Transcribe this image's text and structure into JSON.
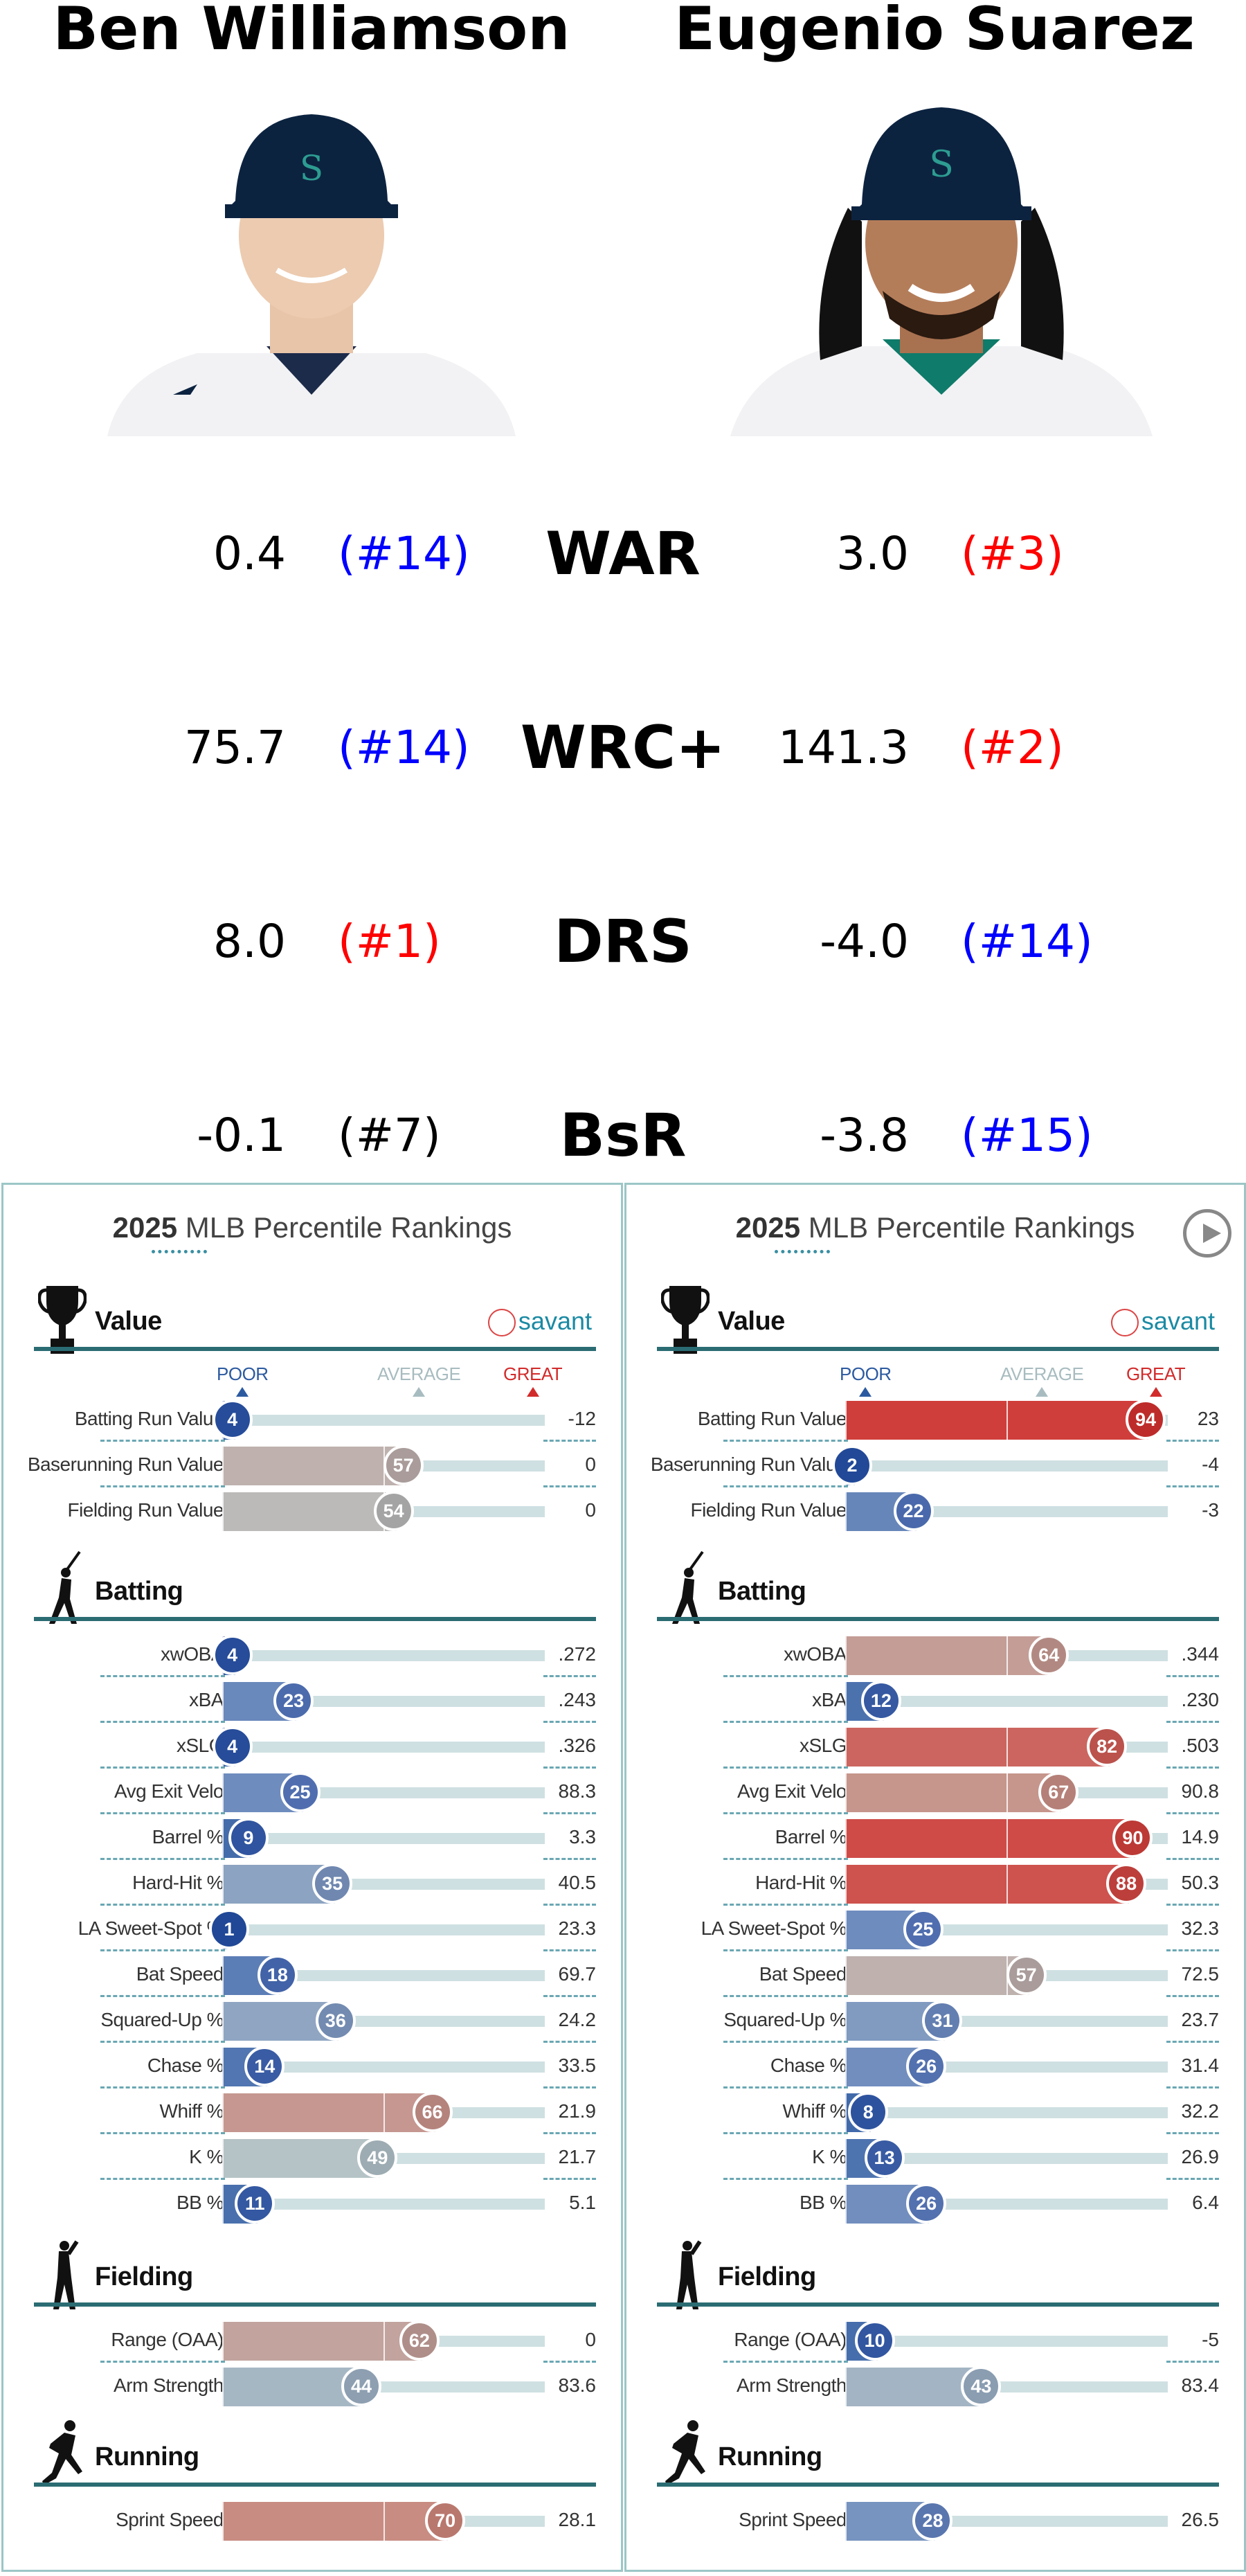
{
  "players": [
    {
      "name": "Ben Williamson",
      "stats": [
        {
          "value": "0.4",
          "rank": "(#14)",
          "rank_color": "#0000ff"
        },
        {
          "value": "75.7",
          "rank": "(#14)",
          "rank_color": "#0000ff"
        },
        {
          "value": "8.0",
          "rank": "(#1)",
          "rank_color": "#ff0000"
        },
        {
          "value": "-0.1",
          "rank": "(#7)",
          "rank_color": "#000000"
        }
      ],
      "card": {
        "value_rows": [
          {
            "label": "Batting Run Value",
            "pct": 4,
            "stat": "-12"
          },
          {
            "label": "Baserunning Run Value",
            "pct": 57,
            "stat": "0"
          },
          {
            "label": "Fielding Run Value",
            "pct": 54,
            "stat": "0"
          }
        ],
        "batting_rows": [
          {
            "label": "xwOBA",
            "pct": 4,
            "stat": ".272"
          },
          {
            "label": "xBA",
            "pct": 23,
            "stat": ".243"
          },
          {
            "label": "xSLG",
            "pct": 4,
            "stat": ".326"
          },
          {
            "label": "Avg Exit Velo",
            "pct": 25,
            "stat": "88.3"
          },
          {
            "label": "Barrel %",
            "pct": 9,
            "stat": "3.3"
          },
          {
            "label": "Hard-Hit %",
            "pct": 35,
            "stat": "40.5"
          },
          {
            "label": "LA Sweet-Spot %",
            "pct": 1,
            "stat": "23.3"
          },
          {
            "label": "Bat Speed",
            "pct": 18,
            "stat": "69.7"
          },
          {
            "label": "Squared-Up %",
            "pct": 36,
            "stat": "24.2"
          },
          {
            "label": "Chase %",
            "pct": 14,
            "stat": "33.5"
          },
          {
            "label": "Whiff %",
            "pct": 66,
            "stat": "21.9"
          },
          {
            "label": "K %",
            "pct": 49,
            "stat": "21.7"
          },
          {
            "label": "BB %",
            "pct": 11,
            "stat": "5.1"
          }
        ],
        "fielding_rows": [
          {
            "label": "Range (OAA)",
            "pct": 62,
            "stat": "0"
          },
          {
            "label": "Arm Strength",
            "pct": 44,
            "stat": "83.6"
          }
        ],
        "running_rows": [
          {
            "label": "Sprint Speed",
            "pct": 70,
            "stat": "28.1"
          }
        ]
      }
    },
    {
      "name": "Eugenio Suarez",
      "stats": [
        {
          "value": "3.0",
          "rank": "(#3)",
          "rank_color": "#ff0000"
        },
        {
          "value": "141.3",
          "rank": "(#2)",
          "rank_color": "#ff0000"
        },
        {
          "value": "-4.0",
          "rank": "(#14)",
          "rank_color": "#0000ff"
        },
        {
          "value": "-3.8",
          "rank": "(#15)",
          "rank_color": "#0000ff"
        }
      ],
      "card": {
        "value_rows": [
          {
            "label": "Batting Run Value",
            "pct": 94,
            "stat": "23"
          },
          {
            "label": "Baserunning Run Value",
            "pct": 2,
            "stat": "-4"
          },
          {
            "label": "Fielding Run Value",
            "pct": 22,
            "stat": "-3"
          }
        ],
        "batting_rows": [
          {
            "label": "xwOBA",
            "pct": 64,
            "stat": ".344"
          },
          {
            "label": "xBA",
            "pct": 12,
            "stat": ".230"
          },
          {
            "label": "xSLG",
            "pct": 82,
            "stat": ".503"
          },
          {
            "label": "Avg Exit Velo",
            "pct": 67,
            "stat": "90.8"
          },
          {
            "label": "Barrel %",
            "pct": 90,
            "stat": "14.9"
          },
          {
            "label": "Hard-Hit %",
            "pct": 88,
            "stat": "50.3"
          },
          {
            "label": "LA Sweet-Spot %",
            "pct": 25,
            "stat": "32.3"
          },
          {
            "label": "Bat Speed",
            "pct": 57,
            "stat": "72.5"
          },
          {
            "label": "Squared-Up %",
            "pct": 31,
            "stat": "23.7"
          },
          {
            "label": "Chase %",
            "pct": 26,
            "stat": "31.4"
          },
          {
            "label": "Whiff %",
            "pct": 8,
            "stat": "32.2"
          },
          {
            "label": "K %",
            "pct": 13,
            "stat": "26.9"
          },
          {
            "label": "BB %",
            "pct": 26,
            "stat": "6.4"
          }
        ],
        "fielding_rows": [
          {
            "label": "Range (OAA)",
            "pct": 10,
            "stat": "-5"
          },
          {
            "label": "Arm Strength",
            "pct": 43,
            "stat": "83.4"
          }
        ],
        "running_rows": [
          {
            "label": "Sprint Speed",
            "pct": 28,
            "stat": "26.5"
          }
        ]
      }
    }
  ],
  "stat_labels": [
    "WAR",
    "WRC+",
    "DRS",
    "BsR"
  ],
  "card_title_year": "2025",
  "card_title_rest": " MLB Percentile Rankings",
  "section_titles": {
    "value": "Value",
    "batting": "Batting",
    "fielding": "Fielding",
    "running": "Running"
  },
  "savant_label": "savant",
  "legend": {
    "poor": "POOR",
    "average": "AVERAGE",
    "great": "GREAT"
  },
  "colors": {
    "poor": "#2c5aa0",
    "average": "#b8c5c6",
    "great": "#d22b2b",
    "rank_blue": "#0000ff",
    "rank_red": "#ff0000",
    "section_line": "#2b6c73"
  },
  "icons": {
    "value": "trophy-icon",
    "batting": "batter-icon",
    "fielding": "fielder-icon",
    "running": "runner-icon",
    "next": "play-next-icon"
  }
}
